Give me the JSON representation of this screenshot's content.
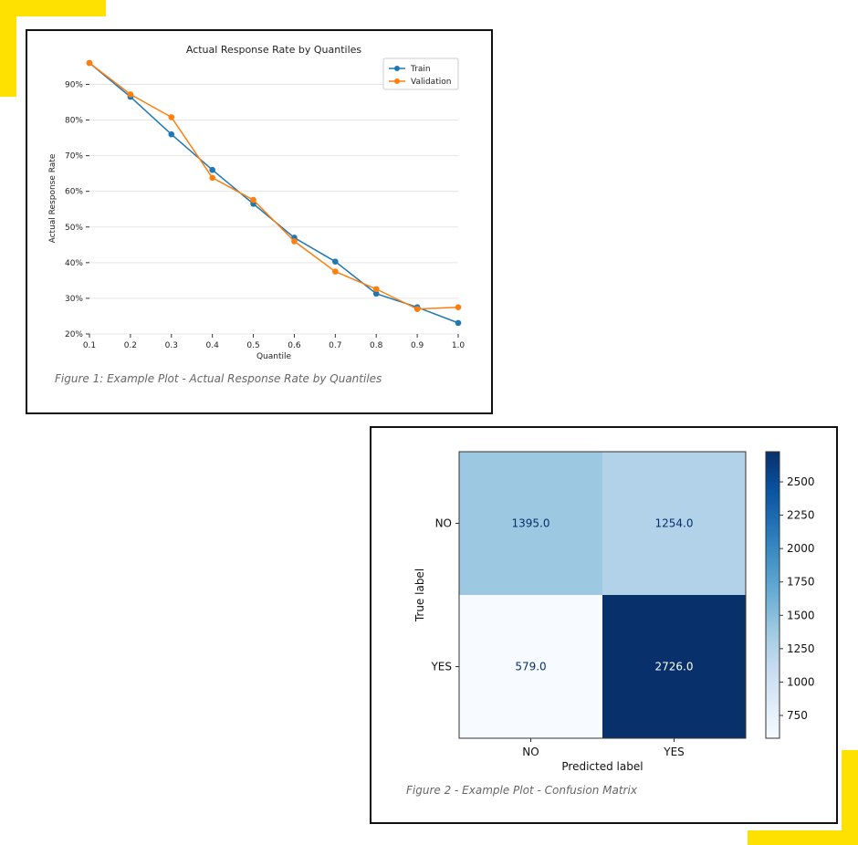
{
  "colors": {
    "accent_yellow": "#ffe100",
    "train": "#1f77b4",
    "validation": "#ff7f0e",
    "grid": "#e5e5e5",
    "caption": "#666666"
  },
  "chart_data": [
    {
      "type": "line",
      "title": "Actual Response Rate by Quantiles",
      "xlabel": "Quantile",
      "ylabel": "Actual Response Rate",
      "x": [
        0.1,
        0.2,
        0.3,
        0.4,
        0.5,
        0.6,
        0.7,
        0.8,
        0.9,
        1.0
      ],
      "x_tick_labels": [
        "0.1",
        "0.2",
        "0.3",
        "0.4",
        "0.5",
        "0.6",
        "0.7",
        "0.8",
        "0.9",
        "1.0"
      ],
      "y_ticks": [
        0.2,
        0.3,
        0.4,
        0.5,
        0.6,
        0.7,
        0.8,
        0.9
      ],
      "y_tick_labels": [
        "20%",
        "30%",
        "40%",
        "50%",
        "60%",
        "70%",
        "80%",
        "90%"
      ],
      "xlim": [
        0.1,
        1.0
      ],
      "ylim": [
        0.2,
        0.96
      ],
      "grid": "horizontal",
      "legend_position": "top-right",
      "series": [
        {
          "name": "Train",
          "color": "#1f77b4",
          "values": [
            0.96,
            0.865,
            0.76,
            0.66,
            0.565,
            0.47,
            0.403,
            0.313,
            0.275,
            0.231
          ]
        },
        {
          "name": "Validation",
          "color": "#ff7f0e",
          "values": [
            0.96,
            0.872,
            0.808,
            0.638,
            0.576,
            0.46,
            0.375,
            0.326,
            0.27,
            0.275
          ]
        }
      ],
      "caption": "Figure 1: Example Plot - Actual Response Rate by Quantiles"
    },
    {
      "type": "heatmap",
      "xlabel": "Predicted label",
      "ylabel": "True label",
      "x_categories": [
        "NO",
        "YES"
      ],
      "y_categories": [
        "NO",
        "YES"
      ],
      "values": [
        [
          1395.0,
          1254.0
        ],
        [
          579.0,
          2726.0
        ]
      ],
      "value_labels": [
        [
          "1395.0",
          "1254.0"
        ],
        [
          "579.0",
          "2726.0"
        ]
      ],
      "colormap": "Blues",
      "colorbar_range": [
        579,
        2726
      ],
      "colorbar_ticks": [
        750,
        1000,
        1250,
        1500,
        1750,
        2000,
        2250,
        2500
      ],
      "colorbar_tick_labels": [
        "750",
        "1000",
        "1250",
        "1500",
        "1750",
        "2000",
        "2250",
        "2500"
      ],
      "caption": "Figure 2 - Example Plot - Confusion Matrix"
    }
  ]
}
